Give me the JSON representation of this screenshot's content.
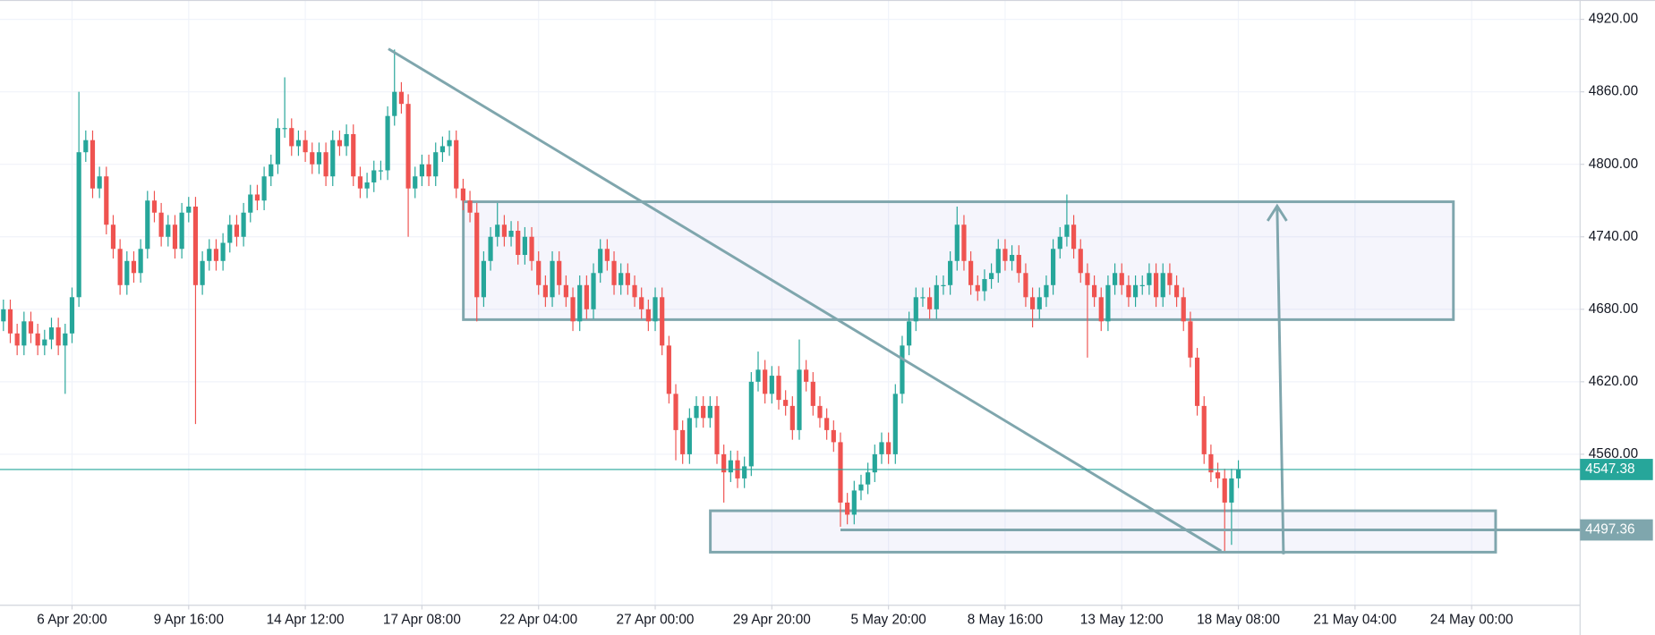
{
  "chart_data": {
    "type": "candlestick",
    "up_color": "#26a69a",
    "down_color": "#ef5350",
    "grid": true,
    "xlim": [
      -0.5,
      229.8
    ],
    "xticks": [
      {
        "value": 10,
        "label": "6 Apr 20:00"
      },
      {
        "value": 27,
        "label": "9 Apr 16:00"
      },
      {
        "value": 44,
        "label": "14 Apr 12:00"
      },
      {
        "value": 61,
        "label": "17 Apr 08:00"
      },
      {
        "value": 78,
        "label": "22 Apr 04:00"
      },
      {
        "value": 95,
        "label": "27 Apr 00:00"
      },
      {
        "value": 112,
        "label": "29 Apr 20:00"
      },
      {
        "value": 129,
        "label": "5 May 20:00"
      },
      {
        "value": 146,
        "label": "8 May 16:00"
      },
      {
        "value": 163,
        "label": "13 May 12:00"
      },
      {
        "value": 180,
        "label": "18 May 08:00"
      },
      {
        "value": 197,
        "label": "21 May 04:00"
      },
      {
        "value": 214,
        "label": "24 May 00:00"
      }
    ],
    "ylim": [
      4435,
      4936
    ],
    "yticks": [
      {
        "value": 4560,
        "label": "4560.00"
      },
      {
        "value": 4620,
        "label": "4620.00"
      },
      {
        "value": 4680,
        "label": "4680.00"
      },
      {
        "value": 4740,
        "label": "4740.00"
      },
      {
        "value": 4800,
        "label": "4800.00"
      },
      {
        "value": 4860,
        "label": "4860.00"
      },
      {
        "value": 4920,
        "label": "4920.00"
      }
    ],
    "price_lines": [
      {
        "value": 4547.38,
        "color": "#26a69a"
      },
      {
        "value": 4497.36,
        "color": "#7fa6ad"
      }
    ],
    "ohlc": [
      [
        4670,
        4688,
        4662,
        4680
      ],
      [
        4680,
        4688,
        4652,
        4660
      ],
      [
        4660,
        4668,
        4642,
        4650
      ],
      [
        4650,
        4678,
        4642,
        4670
      ],
      [
        4670,
        4678,
        4652,
        4660
      ],
      [
        4660,
        4668,
        4642,
        4650
      ],
      [
        4650,
        4663,
        4642,
        4655
      ],
      [
        4655,
        4673,
        4647,
        4665
      ],
      [
        4665,
        4673,
        4642,
        4650
      ],
      [
        4650,
        4668,
        4610,
        4660
      ],
      [
        4660,
        4698,
        4652,
        4690
      ],
      [
        4690,
        4860,
        4682,
        4810
      ],
      [
        4810,
        4828,
        4802,
        4820
      ],
      [
        4820,
        4828,
        4772,
        4780
      ],
      [
        4780,
        4798,
        4772,
        4790
      ],
      [
        4790,
        4798,
        4742,
        4750
      ],
      [
        4750,
        4758,
        4722,
        4730
      ],
      [
        4730,
        4738,
        4692,
        4700
      ],
      [
        4700,
        4728,
        4692,
        4720
      ],
      [
        4720,
        4728,
        4702,
        4710
      ],
      [
        4710,
        4738,
        4702,
        4730
      ],
      [
        4730,
        4778,
        4722,
        4770
      ],
      [
        4770,
        4778,
        4752,
        4760
      ],
      [
        4760,
        4768,
        4732,
        4740
      ],
      [
        4740,
        4758,
        4732,
        4750
      ],
      [
        4750,
        4758,
        4722,
        4730
      ],
      [
        4730,
        4768,
        4722,
        4760
      ],
      [
        4760,
        4773,
        4752,
        4765
      ],
      [
        4765,
        4773,
        4585,
        4700
      ],
      [
        4700,
        4728,
        4692,
        4720
      ],
      [
        4720,
        4738,
        4712,
        4730
      ],
      [
        4730,
        4738,
        4712,
        4720
      ],
      [
        4720,
        4743,
        4712,
        4735
      ],
      [
        4735,
        4758,
        4727,
        4750
      ],
      [
        4750,
        4758,
        4732,
        4740
      ],
      [
        4740,
        4768,
        4732,
        4760
      ],
      [
        4760,
        4783,
        4752,
        4775
      ],
      [
        4775,
        4783,
        4762,
        4770
      ],
      [
        4770,
        4798,
        4762,
        4790
      ],
      [
        4790,
        4808,
        4782,
        4800
      ],
      [
        4800,
        4838,
        4792,
        4830
      ],
      [
        4830,
        4872,
        4822,
        4830
      ],
      [
        4830,
        4838,
        4807,
        4815
      ],
      [
        4815,
        4828,
        4807,
        4820
      ],
      [
        4820,
        4828,
        4802,
        4810
      ],
      [
        4810,
        4818,
        4792,
        4800
      ],
      [
        4800,
        4818,
        4792,
        4810
      ],
      [
        4810,
        4818,
        4782,
        4790
      ],
      [
        4790,
        4828,
        4782,
        4820
      ],
      [
        4820,
        4828,
        4807,
        4815
      ],
      [
        4815,
        4833,
        4807,
        4825
      ],
      [
        4825,
        4833,
        4782,
        4790
      ],
      [
        4790,
        4798,
        4772,
        4780
      ],
      [
        4780,
        4793,
        4772,
        4785
      ],
      [
        4785,
        4803,
        4777,
        4795
      ],
      [
        4795,
        4803,
        4787,
        4795
      ],
      [
        4795,
        4848,
        4787,
        4840
      ],
      [
        4840,
        4895,
        4832,
        4860
      ],
      [
        4860,
        4868,
        4842,
        4850
      ],
      [
        4850,
        4858,
        4740,
        4780
      ],
      [
        4780,
        4798,
        4772,
        4790
      ],
      [
        4790,
        4808,
        4782,
        4800
      ],
      [
        4800,
        4808,
        4782,
        4790
      ],
      [
        4790,
        4818,
        4782,
        4810
      ],
      [
        4810,
        4823,
        4802,
        4815
      ],
      [
        4815,
        4828,
        4807,
        4820
      ],
      [
        4820,
        4828,
        4772,
        4780
      ],
      [
        4780,
        4788,
        4762,
        4770
      ],
      [
        4770,
        4778,
        4752,
        4760
      ],
      [
        4760,
        4768,
        4670,
        4690
      ],
      [
        4690,
        4728,
        4682,
        4720
      ],
      [
        4720,
        4748,
        4712,
        4740
      ],
      [
        4740,
        4768,
        4732,
        4750
      ],
      [
        4750,
        4758,
        4732,
        4740
      ],
      [
        4740,
        4753,
        4732,
        4745
      ],
      [
        4745,
        4753,
        4717,
        4725
      ],
      [
        4725,
        4748,
        4717,
        4740
      ],
      [
        4740,
        4748,
        4712,
        4720
      ],
      [
        4720,
        4728,
        4692,
        4700
      ],
      [
        4700,
        4708,
        4682,
        4690
      ],
      [
        4690,
        4728,
        4682,
        4720
      ],
      [
        4720,
        4728,
        4692,
        4700
      ],
      [
        4700,
        4708,
        4682,
        4690
      ],
      [
        4690,
        4698,
        4662,
        4670
      ],
      [
        4670,
        4708,
        4662,
        4700
      ],
      [
        4700,
        4708,
        4672,
        4680
      ],
      [
        4680,
        4718,
        4672,
        4710
      ],
      [
        4710,
        4738,
        4702,
        4730
      ],
      [
        4730,
        4738,
        4712,
        4720
      ],
      [
        4720,
        4728,
        4692,
        4700
      ],
      [
        4700,
        4718,
        4692,
        4710
      ],
      [
        4710,
        4718,
        4692,
        4700
      ],
      [
        4700,
        4708,
        4682,
        4690
      ],
      [
        4690,
        4698,
        4672,
        4680
      ],
      [
        4680,
        4688,
        4662,
        4670
      ],
      [
        4670,
        4698,
        4662,
        4690
      ],
      [
        4690,
        4698,
        4642,
        4650
      ],
      [
        4650,
        4658,
        4602,
        4610
      ],
      [
        4610,
        4618,
        4555,
        4580
      ],
      [
        4580,
        4588,
        4552,
        4560
      ],
      [
        4560,
        4598,
        4552,
        4590
      ],
      [
        4590,
        4608,
        4582,
        4600
      ],
      [
        4600,
        4608,
        4582,
        4590
      ],
      [
        4590,
        4608,
        4582,
        4600
      ],
      [
        4600,
        4608,
        4552,
        4560
      ],
      [
        4560,
        4568,
        4520,
        4545
      ],
      [
        4545,
        4563,
        4537,
        4555
      ],
      [
        4555,
        4563,
        4532,
        4540
      ],
      [
        4540,
        4558,
        4532,
        4550
      ],
      [
        4550,
        4628,
        4542,
        4620
      ],
      [
        4620,
        4645,
        4612,
        4630
      ],
      [
        4630,
        4638,
        4602,
        4610
      ],
      [
        4610,
        4633,
        4602,
        4625
      ],
      [
        4625,
        4633,
        4597,
        4605
      ],
      [
        4605,
        4613,
        4592,
        4600
      ],
      [
        4600,
        4608,
        4572,
        4580
      ],
      [
        4580,
        4655,
        4572,
        4630
      ],
      [
        4630,
        4638,
        4612,
        4620
      ],
      [
        4620,
        4628,
        4592,
        4600
      ],
      [
        4600,
        4608,
        4582,
        4590
      ],
      [
        4590,
        4598,
        4572,
        4580
      ],
      [
        4580,
        4588,
        4562,
        4570
      ],
      [
        4570,
        4578,
        4500,
        4520
      ],
      [
        4520,
        4528,
        4502,
        4510
      ],
      [
        4510,
        4538,
        4502,
        4530
      ],
      [
        4530,
        4543,
        4522,
        4535
      ],
      [
        4535,
        4553,
        4527,
        4545
      ],
      [
        4545,
        4568,
        4537,
        4560
      ],
      [
        4560,
        4578,
        4552,
        4570
      ],
      [
        4570,
        4578,
        4552,
        4560
      ],
      [
        4560,
        4618,
        4552,
        4610
      ],
      [
        4610,
        4658,
        4602,
        4650
      ],
      [
        4650,
        4678,
        4642,
        4670
      ],
      [
        4670,
        4698,
        4662,
        4690
      ],
      [
        4690,
        4698,
        4682,
        4690
      ],
      [
        4690,
        4698,
        4672,
        4680
      ],
      [
        4680,
        4708,
        4672,
        4700
      ],
      [
        4700,
        4708,
        4692,
        4700
      ],
      [
        4700,
        4728,
        4692,
        4720
      ],
      [
        4720,
        4765,
        4712,
        4750
      ],
      [
        4750,
        4758,
        4712,
        4720
      ],
      [
        4720,
        4728,
        4692,
        4700
      ],
      [
        4700,
        4708,
        4687,
        4695
      ],
      [
        4695,
        4713,
        4687,
        4705
      ],
      [
        4705,
        4718,
        4697,
        4710
      ],
      [
        4710,
        4738,
        4702,
        4730
      ],
      [
        4730,
        4738,
        4712,
        4720
      ],
      [
        4720,
        4733,
        4712,
        4725
      ],
      [
        4725,
        4733,
        4702,
        4710
      ],
      [
        4710,
        4718,
        4682,
        4690
      ],
      [
        4690,
        4698,
        4665,
        4680
      ],
      [
        4680,
        4698,
        4672,
        4690
      ],
      [
        4690,
        4708,
        4682,
        4700
      ],
      [
        4700,
        4738,
        4692,
        4730
      ],
      [
        4730,
        4748,
        4722,
        4740
      ],
      [
        4740,
        4775,
        4732,
        4750
      ],
      [
        4750,
        4758,
        4722,
        4730
      ],
      [
        4730,
        4738,
        4702,
        4710
      ],
      [
        4710,
        4718,
        4640,
        4700
      ],
      [
        4700,
        4708,
        4682,
        4690
      ],
      [
        4690,
        4698,
        4662,
        4670
      ],
      [
        4670,
        4708,
        4662,
        4700
      ],
      [
        4700,
        4718,
        4692,
        4710
      ],
      [
        4710,
        4718,
        4692,
        4700
      ],
      [
        4700,
        4708,
        4682,
        4690
      ],
      [
        4690,
        4708,
        4682,
        4700
      ],
      [
        4700,
        4708,
        4692,
        4700
      ],
      [
        4700,
        4718,
        4692,
        4710
      ],
      [
        4710,
        4718,
        4682,
        4690
      ],
      [
        4690,
        4718,
        4682,
        4710
      ],
      [
        4710,
        4718,
        4692,
        4700
      ],
      [
        4700,
        4708,
        4682,
        4690
      ],
      [
        4690,
        4698,
        4662,
        4670
      ],
      [
        4670,
        4678,
        4632,
        4640
      ],
      [
        4640,
        4648,
        4592,
        4600
      ],
      [
        4600,
        4608,
        4552,
        4560
      ],
      [
        4560,
        4568,
        4537,
        4545
      ],
      [
        4545,
        4553,
        4532,
        4540
      ],
      [
        4540,
        4548,
        4480,
        4520
      ],
      [
        4520,
        4548,
        4485,
        4540
      ],
      [
        4540,
        4555,
        4532,
        4547.38
      ]
    ]
  }
}
